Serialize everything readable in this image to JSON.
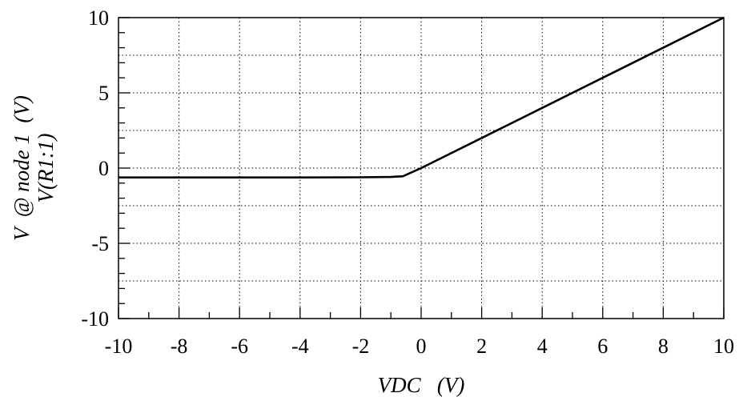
{
  "chart_data": {
    "type": "line",
    "xlabel": "VDC   (V)",
    "ylabel_lines": [
      "V  @ node 1  (V)",
      "V(R1:1)"
    ],
    "xlim": [
      -10,
      10
    ],
    "ylim": [
      -10,
      10
    ],
    "x_ticks": [
      -10,
      -8,
      -6,
      -4,
      -2,
      0,
      2,
      4,
      6,
      8,
      10
    ],
    "x_tick_labels": [
      "-10",
      "-8",
      "-6",
      "-4",
      "-2",
      "0",
      "2",
      "4",
      "6",
      "8",
      "10"
    ],
    "y_ticks": [
      10,
      5,
      0,
      -5,
      -10
    ],
    "y_tick_labels": [
      "10",
      "5",
      "0",
      "-5",
      "-10"
    ],
    "x_minor_step": 1,
    "y_minor_step": 1,
    "x_grid_step": 2,
    "y_grid_step": 2.5,
    "grid": true,
    "series": [
      {
        "color": "#000000",
        "x": [
          -10,
          -8,
          -6,
          -4,
          -2,
          -1,
          -0.6,
          -0.5,
          0,
          2,
          4,
          6,
          8,
          10
        ],
        "y": [
          -0.62,
          -0.62,
          -0.62,
          -0.62,
          -0.61,
          -0.59,
          -0.54,
          -0.45,
          0,
          2,
          4,
          6,
          8,
          10
        ]
      }
    ]
  }
}
